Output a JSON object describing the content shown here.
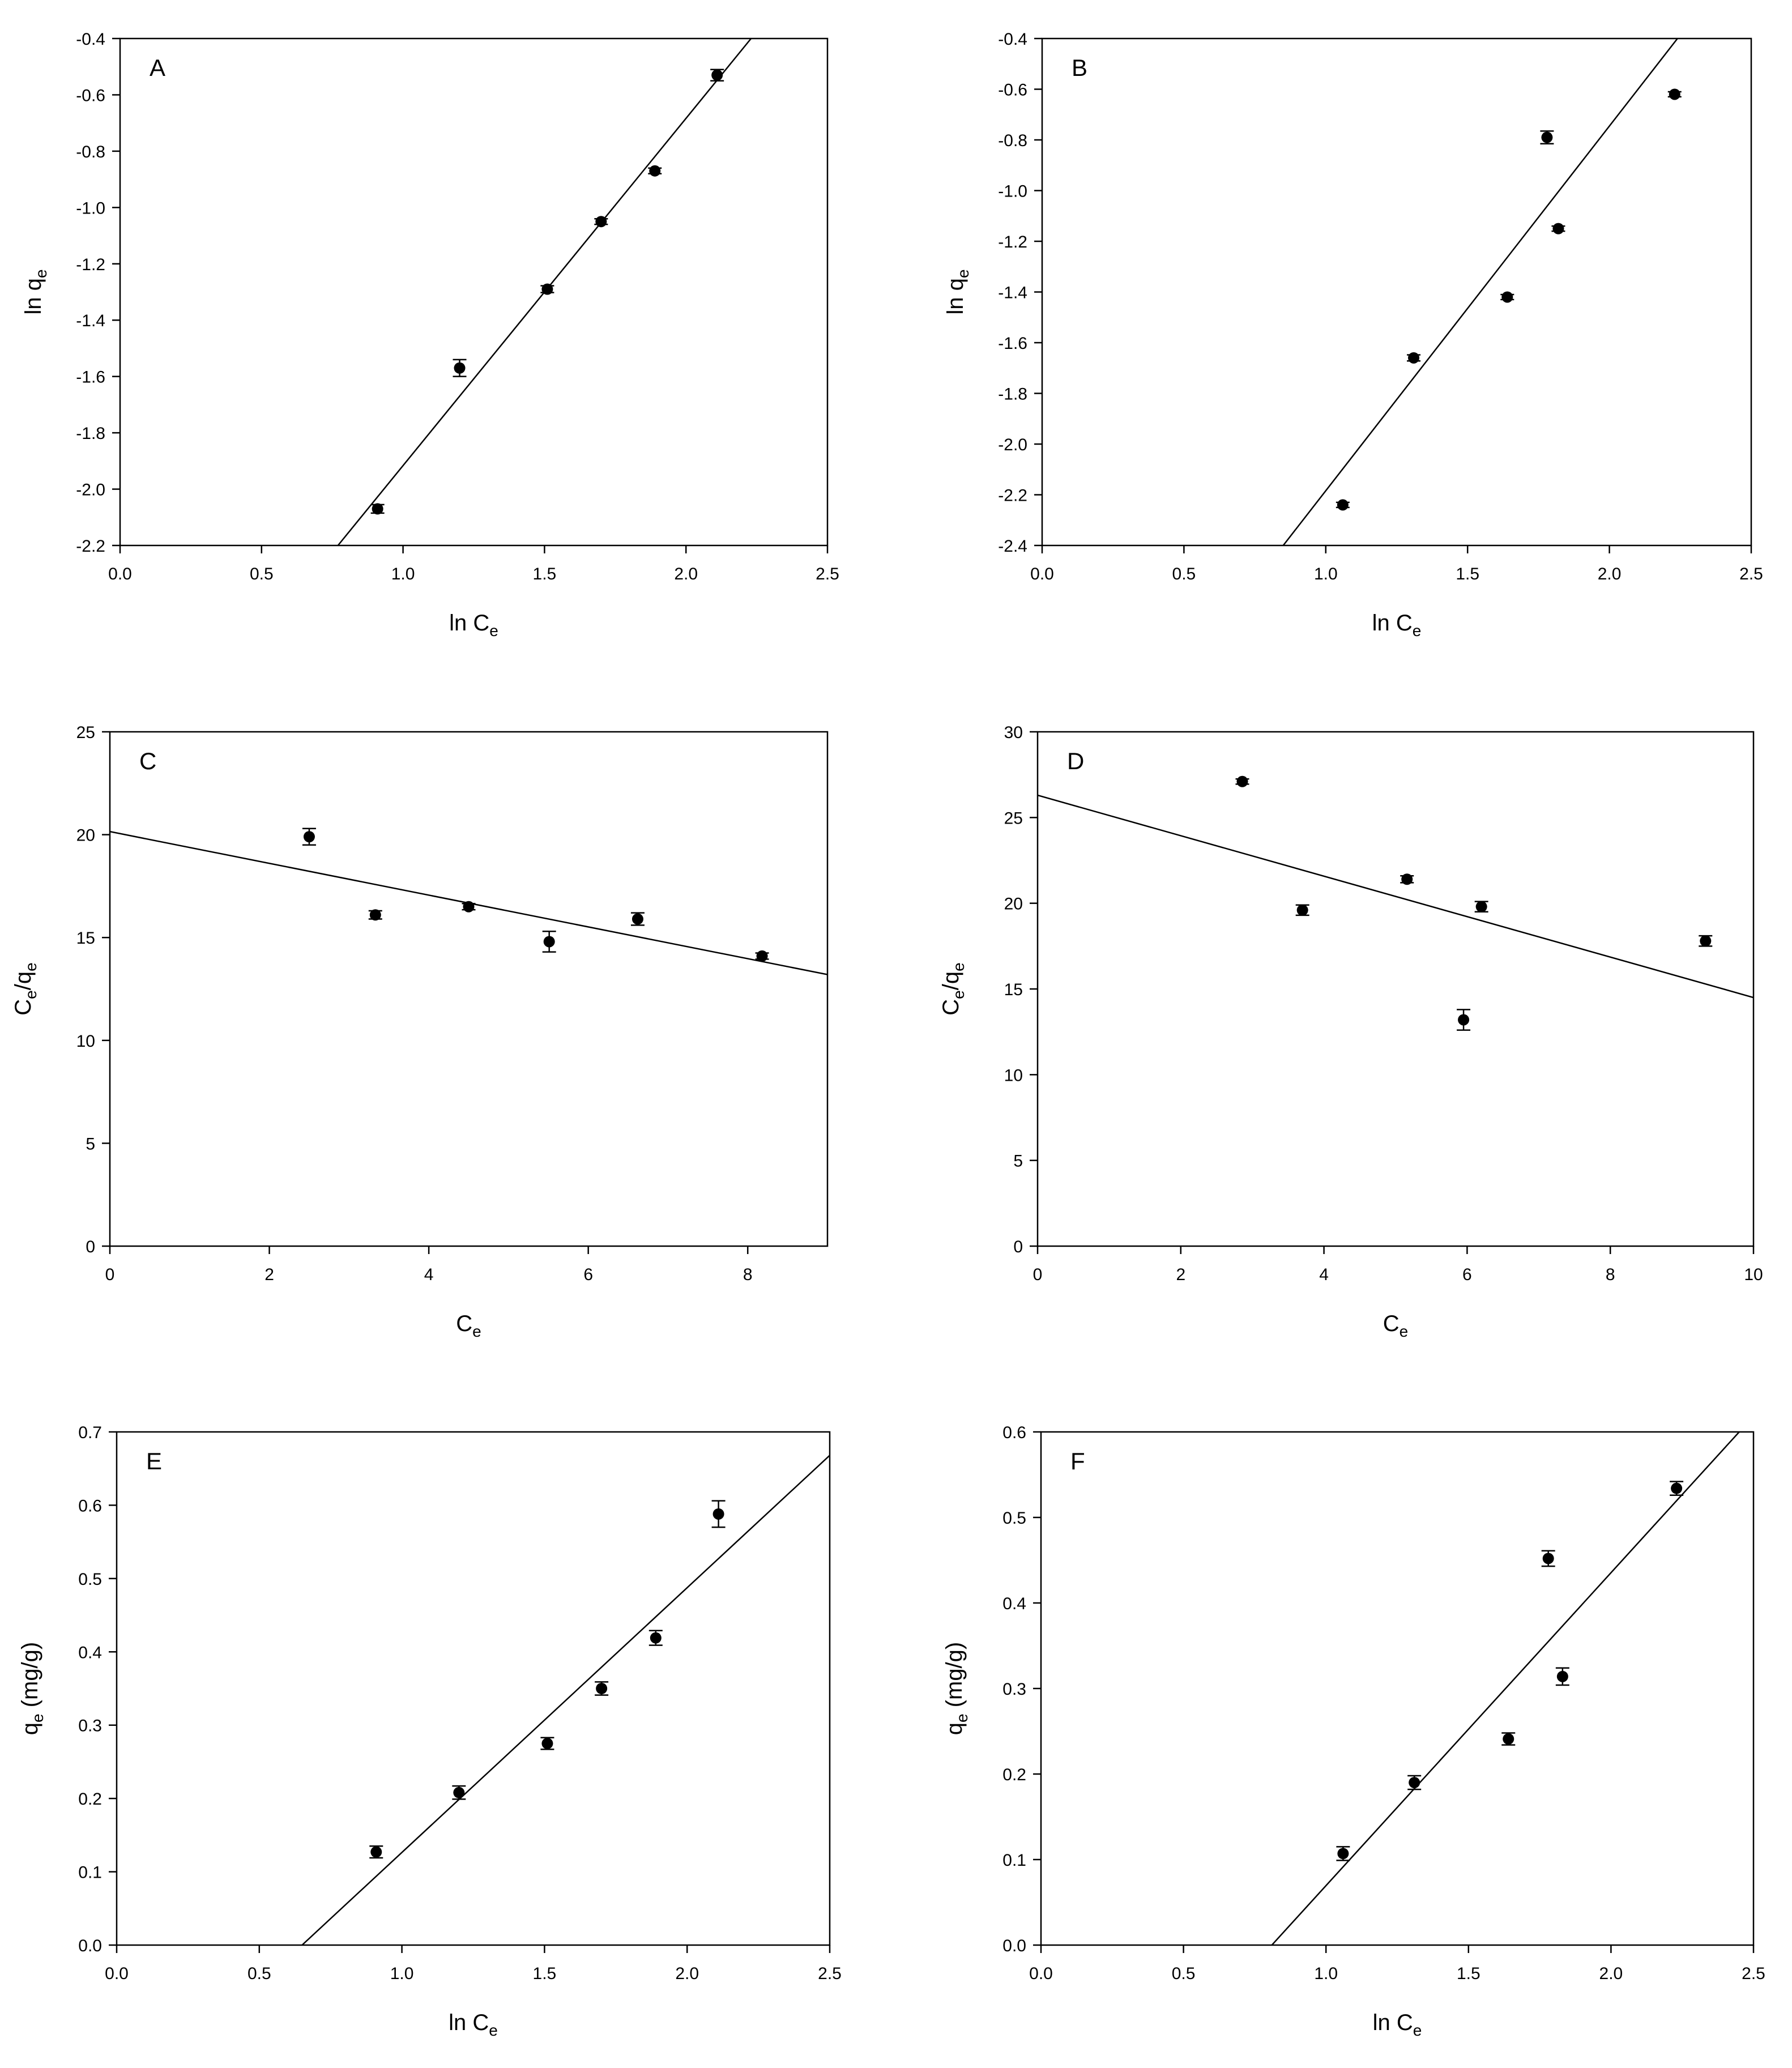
{
  "chart_data": [
    {
      "panel": "A",
      "type": "scatter",
      "xlabel": "ln C",
      "xlabel_sub": "e",
      "ylabel": "ln q",
      "ylabel_sub": "e",
      "xlim": [
        0.0,
        2.5
      ],
      "ylim": [
        -2.2,
        -0.4
      ],
      "xticks": [
        "0.0",
        "0.5",
        "1.0",
        "1.5",
        "2.0",
        "2.5"
      ],
      "yticks": [
        "-2.2",
        "-2.0",
        "-1.8",
        "-1.6",
        "-1.4",
        "-1.2",
        "-1.0",
        "-0.8",
        "-0.6",
        "-0.4"
      ],
      "grid": false,
      "points": [
        {
          "x": 0.91,
          "y": -2.07,
          "err": 0.015
        },
        {
          "x": 1.2,
          "y": -1.57,
          "err": 0.03
        },
        {
          "x": 1.51,
          "y": -1.29,
          "err": 0.012
        },
        {
          "x": 1.7,
          "y": -1.05,
          "err": 0.01
        },
        {
          "x": 1.89,
          "y": -0.87,
          "err": 0.01
        },
        {
          "x": 2.11,
          "y": -0.53,
          "err": 0.02
        }
      ],
      "fit_line": {
        "x": [
          0.77,
          2.23
        ],
        "y": [
          -2.2,
          -0.4
        ]
      }
    },
    {
      "panel": "B",
      "type": "scatter",
      "xlabel": "ln C",
      "xlabel_sub": "e",
      "ylabel": "ln q",
      "ylabel_sub": "e",
      "xlim": [
        0.0,
        2.5
      ],
      "ylim": [
        -2.4,
        -0.4
      ],
      "xticks": [
        "0.0",
        "0.5",
        "1.0",
        "1.5",
        "2.0",
        "2.5"
      ],
      "yticks": [
        "-2.4",
        "-2.2",
        "-2.0",
        "-1.8",
        "-1.6",
        "-1.4",
        "-1.2",
        "-1.0",
        "-0.8",
        "-0.6",
        "-0.4"
      ],
      "grid": false,
      "points": [
        {
          "x": 1.06,
          "y": -2.24,
          "err": 0.01
        },
        {
          "x": 1.31,
          "y": -1.66,
          "err": 0.012
        },
        {
          "x": 1.64,
          "y": -1.42,
          "err": 0.01
        },
        {
          "x": 1.78,
          "y": -0.79,
          "err": 0.025
        },
        {
          "x": 1.82,
          "y": -1.15,
          "err": 0.01
        },
        {
          "x": 2.23,
          "y": -0.62,
          "err": 0.01
        }
      ],
      "fit_line": {
        "x": [
          0.85,
          2.24
        ],
        "y": [
          -2.4,
          -0.4
        ]
      }
    },
    {
      "panel": "C",
      "type": "scatter",
      "xlabel": "C",
      "xlabel_sub": "e",
      "ylabel": "C",
      "ylabel_sub": "e",
      "ylabel_rest": "/q",
      "ylabel_sub2": "e",
      "xlim": [
        0,
        9
      ],
      "ylim": [
        0,
        25
      ],
      "xticks": [
        "0",
        "2",
        "4",
        "6",
        "8"
      ],
      "yticks": [
        "0",
        "5",
        "10",
        "15",
        "20",
        "25"
      ],
      "grid": false,
      "points": [
        {
          "x": 2.5,
          "y": 19.9,
          "err": 0.4
        },
        {
          "x": 3.33,
          "y": 16.1,
          "err": 0.2
        },
        {
          "x": 4.5,
          "y": 16.5,
          "err": 0.15
        },
        {
          "x": 5.51,
          "y": 14.8,
          "err": 0.5
        },
        {
          "x": 6.62,
          "y": 15.9,
          "err": 0.3
        },
        {
          "x": 8.18,
          "y": 14.1,
          "err": 0.15
        }
      ],
      "fit_line": {
        "x": [
          0,
          9
        ],
        "y": [
          20.15,
          13.2
        ]
      }
    },
    {
      "panel": "D",
      "type": "scatter",
      "xlabel": "C",
      "xlabel_sub": "e",
      "ylabel": "C",
      "ylabel_sub": "e",
      "ylabel_rest": "/q",
      "ylabel_sub2": "e",
      "xlim": [
        0,
        10
      ],
      "ylim": [
        0,
        30
      ],
      "xticks": [
        "0",
        "2",
        "4",
        "6",
        "8",
        "10"
      ],
      "yticks": [
        "0",
        "5",
        "10",
        "15",
        "20",
        "25",
        "30"
      ],
      "grid": false,
      "points": [
        {
          "x": 2.86,
          "y": 27.1,
          "err": 0.15
        },
        {
          "x": 3.7,
          "y": 19.6,
          "err": 0.3
        },
        {
          "x": 5.16,
          "y": 21.4,
          "err": 0.2
        },
        {
          "x": 5.95,
          "y": 13.2,
          "err": 0.6
        },
        {
          "x": 6.2,
          "y": 19.8,
          "err": 0.3
        },
        {
          "x": 9.33,
          "y": 17.8,
          "err": 0.3
        }
      ],
      "fit_line": {
        "x": [
          0,
          10
        ],
        "y": [
          26.3,
          14.5
        ]
      }
    },
    {
      "panel": "E",
      "type": "scatter",
      "xlabel": "ln C",
      "xlabel_sub": "e",
      "ylabel": "q",
      "ylabel_sub": "e",
      "ylabel_rest": " (mg/g)",
      "xlim": [
        0.0,
        2.5
      ],
      "ylim": [
        0.0,
        0.7
      ],
      "xticks": [
        "0.0",
        "0.5",
        "1.0",
        "1.5",
        "2.0",
        "2.5"
      ],
      "yticks": [
        "0.0",
        "0.1",
        "0.2",
        "0.3",
        "0.4",
        "0.5",
        "0.6",
        "0.7"
      ],
      "grid": false,
      "points": [
        {
          "x": 0.91,
          "y": 0.127,
          "err": 0.008
        },
        {
          "x": 1.2,
          "y": 0.208,
          "err": 0.009
        },
        {
          "x": 1.51,
          "y": 0.275,
          "err": 0.008
        },
        {
          "x": 1.7,
          "y": 0.35,
          "err": 0.009
        },
        {
          "x": 1.89,
          "y": 0.419,
          "err": 0.01
        },
        {
          "x": 2.11,
          "y": 0.588,
          "err": 0.018
        }
      ],
      "fit_line": {
        "x": [
          0.65,
          2.5
        ],
        "y": [
          0.0,
          0.668
        ]
      }
    },
    {
      "panel": "F",
      "type": "scatter",
      "xlabel": "ln C",
      "xlabel_sub": "e",
      "ylabel": "q",
      "ylabel_sub": "e",
      "ylabel_rest": " (mg/g)",
      "xlim": [
        0.0,
        2.5
      ],
      "ylim": [
        0.0,
        0.6
      ],
      "xticks": [
        "0.0",
        "0.5",
        "1.0",
        "1.5",
        "2.0",
        "2.5"
      ],
      "yticks": [
        "0.0",
        "0.1",
        "0.2",
        "0.3",
        "0.4",
        "0.5",
        "0.6"
      ],
      "grid": false,
      "points": [
        {
          "x": 1.06,
          "y": 0.107,
          "err": 0.008
        },
        {
          "x": 1.31,
          "y": 0.19,
          "err": 0.008
        },
        {
          "x": 1.64,
          "y": 0.241,
          "err": 0.007
        },
        {
          "x": 1.78,
          "y": 0.452,
          "err": 0.009
        },
        {
          "x": 1.83,
          "y": 0.314,
          "err": 0.01
        },
        {
          "x": 2.23,
          "y": 0.534,
          "err": 0.008
        }
      ],
      "fit_line": {
        "x": [
          0.81,
          2.45
        ],
        "y": [
          0.0,
          0.6
        ]
      }
    }
  ]
}
